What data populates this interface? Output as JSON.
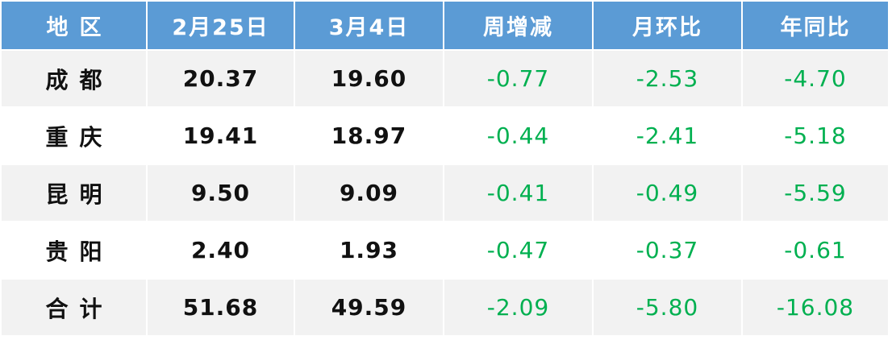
{
  "table": {
    "headers": [
      "地区",
      "2月25日",
      "3月4日",
      "周增减",
      "月环比",
      "年同比"
    ],
    "rows": [
      {
        "region": "成都",
        "feb25": "20.37",
        "mar4": "19.60",
        "weekly": "-0.77",
        "mom": "-2.53",
        "yoy": "-4.70"
      },
      {
        "region": "重庆",
        "feb25": "19.41",
        "mar4": "18.97",
        "weekly": "-0.44",
        "mom": "-2.41",
        "yoy": "-5.18"
      },
      {
        "region": "昆明",
        "feb25": "9.50",
        "mar4": "9.09",
        "weekly": "-0.41",
        "mom": "-0.49",
        "yoy": "-5.59"
      },
      {
        "region": "贵阳",
        "feb25": "2.40",
        "mar4": "1.93",
        "weekly": "-0.47",
        "mom": "-0.37",
        "yoy": "-0.61"
      },
      {
        "region": "合计",
        "feb25": "51.68",
        "mar4": "49.59",
        "weekly": "-2.09",
        "mom": "-5.80",
        "yoy": "-16.08"
      }
    ]
  },
  "colors": {
    "header_bg": "#5b9bd5",
    "negative": "#00b050",
    "row_alt": "#f2f2f2"
  }
}
